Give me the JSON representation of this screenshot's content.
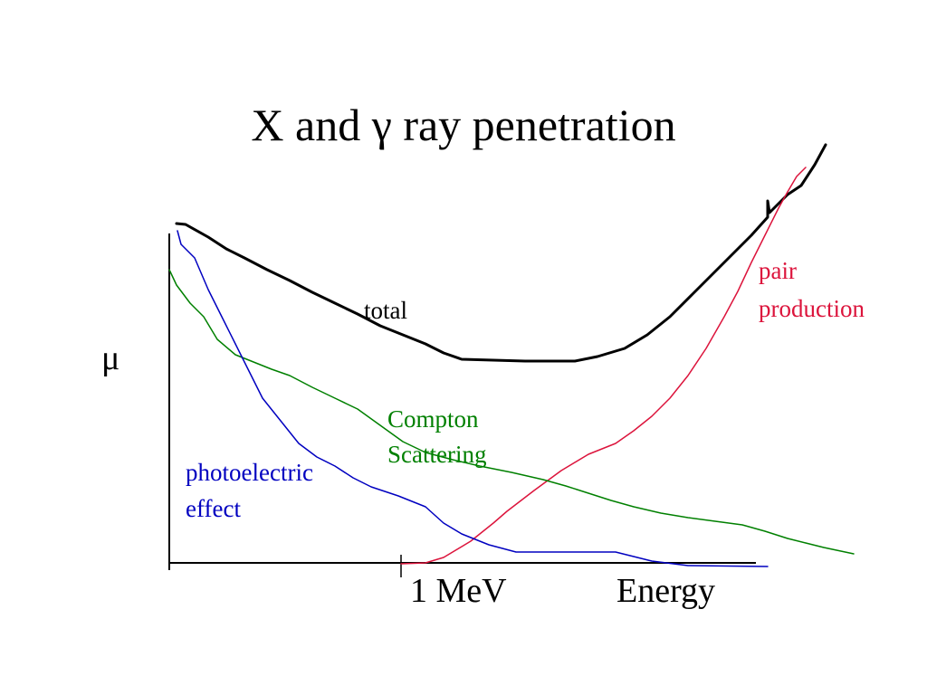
{
  "header": {
    "title": "X and γ ray penetration"
  },
  "axes": {
    "y_label": "μ",
    "x_marker": "1 MeV",
    "x_label": "Energy"
  },
  "labels": {
    "total": "total",
    "pair_production": [
      "pair",
      "production"
    ],
    "compton": [
      "Compton",
      "Scattering"
    ],
    "photoelectric": [
      "photoelectric",
      "effect"
    ]
  }
}
